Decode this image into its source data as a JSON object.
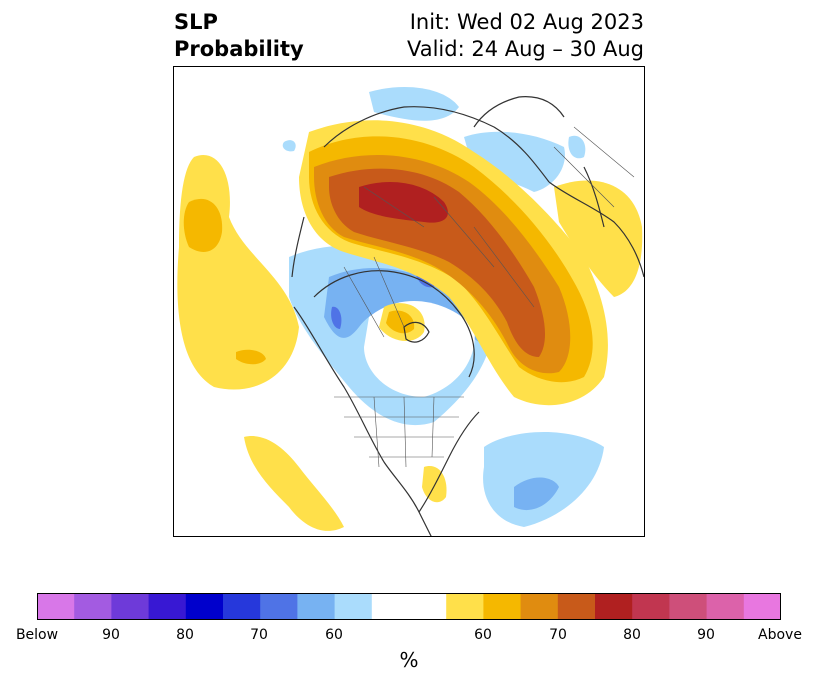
{
  "title": {
    "left_line1": "SLP",
    "left_line2": "Probability",
    "right_line1": "Init: Wed 02 Aug 2023",
    "right_line2": "Valid: 24 Aug – 30 Aug"
  },
  "colorbar": {
    "unit": "%",
    "colors": [
      "#d877e8",
      "#a35be1",
      "#6e3ad9",
      "#3818d3",
      "#0000cc",
      "#2638db",
      "#4f73e6",
      "#77b2f2",
      "#aadcfc",
      "#ffffff",
      "#ffe04a",
      "#f5b800",
      "#e08c10",
      "#c85a1a",
      "#b02020",
      "#c13650",
      "#ce4f7a",
      "#dc62aa",
      "#e877e0"
    ],
    "tick_labels": [
      "Below",
      "90",
      "80",
      "70",
      "60",
      "60",
      "70",
      "80",
      "90",
      "Above"
    ]
  },
  "map": {
    "projection": "north-polar-stereographic",
    "palette": {
      "light_blue": "#aadcfc",
      "mid_blue": "#77b2f2",
      "blue": "#4f73e6",
      "yellow": "#ffe04a",
      "gold": "#f5b800",
      "orange": "#e08c10",
      "dark_orange": "#c85a1a",
      "red": "#b02020"
    }
  }
}
